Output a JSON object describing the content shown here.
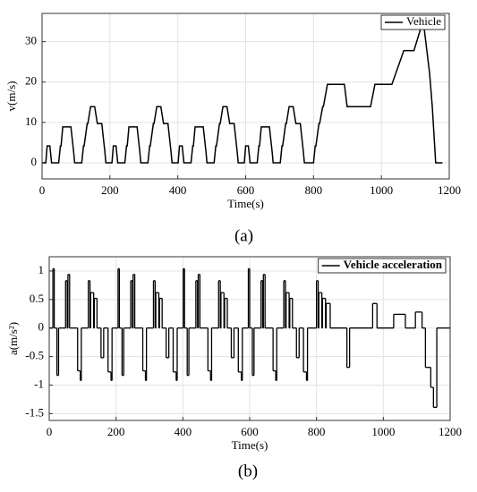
{
  "chart_data": [
    {
      "type": "line",
      "caption": "(a)",
      "xlabel": "Time(s)",
      "ylabel": "v(m/s)",
      "xlim": [
        0,
        1200
      ],
      "xticks": [
        0,
        200,
        400,
        600,
        800,
        1000,
        1200
      ],
      "ylim": [
        -4,
        37
      ],
      "yticks": [
        0,
        10,
        20,
        30
      ],
      "grid": true,
      "legend": "upper right",
      "x": [
        0,
        11,
        15,
        23,
        28,
        49,
        54,
        56,
        61,
        85,
        93,
        96,
        117,
        122,
        124,
        133,
        135,
        143,
        155,
        163,
        176,
        185,
        188,
        195,
        206,
        210,
        218,
        223,
        244,
        249,
        251,
        256,
        280,
        288,
        291,
        312,
        317,
        319,
        328,
        330,
        338,
        350,
        358,
        371,
        380,
        383,
        390,
        401,
        405,
        413,
        418,
        439,
        444,
        446,
        451,
        475,
        483,
        486,
        507,
        512,
        514,
        523,
        525,
        533,
        545,
        553,
        566,
        575,
        578,
        585,
        596,
        600,
        608,
        613,
        634,
        639,
        641,
        646,
        670,
        678,
        681,
        702,
        707,
        709,
        718,
        720,
        728,
        740,
        748,
        761,
        770,
        773,
        800,
        805,
        807,
        816,
        818,
        827,
        829,
        841,
        891,
        899,
        968,
        981,
        1031,
        1066,
        1096,
        1116,
        1126,
        1142,
        1150,
        1160,
        1180
      ],
      "series": [
        {
          "name": "Vehicle",
          "color": "#000000",
          "values": [
            0,
            0,
            4.17,
            4.17,
            0,
            0,
            4.17,
            4.17,
            8.89,
            8.89,
            2.78,
            0,
            0,
            4.17,
            4.17,
            9.72,
            9.72,
            13.89,
            13.89,
            9.72,
            9.72,
            2.78,
            0,
            0,
            0,
            4.17,
            4.17,
            0,
            0,
            4.17,
            4.17,
            8.89,
            8.89,
            2.78,
            0,
            0,
            4.17,
            4.17,
            9.72,
            9.72,
            13.89,
            13.89,
            9.72,
            9.72,
            2.78,
            0,
            0,
            0,
            4.17,
            4.17,
            0,
            0,
            4.17,
            4.17,
            8.89,
            8.89,
            2.78,
            0,
            0,
            4.17,
            4.17,
            9.72,
            9.72,
            13.89,
            13.89,
            9.72,
            9.72,
            2.78,
            0,
            0,
            0,
            4.17,
            4.17,
            0,
            0,
            4.17,
            4.17,
            8.89,
            8.89,
            2.78,
            0,
            0,
            4.17,
            4.17,
            9.72,
            9.72,
            13.89,
            13.89,
            9.72,
            9.72,
            2.78,
            0,
            0,
            4.17,
            4.17,
            9.72,
            9.72,
            13.89,
            13.89,
            19.44,
            19.44,
            13.89,
            13.89,
            19.44,
            19.44,
            27.78,
            27.78,
            33.33,
            33.33,
            22.22,
            13.89,
            0,
            0
          ]
        }
      ]
    },
    {
      "type": "step",
      "caption": "(b)",
      "xlabel": "Time(s)",
      "ylabel": "a(m/s²)",
      "xlim": [
        0,
        1200
      ],
      "xticks": [
        0,
        200,
        400,
        600,
        800,
        1000,
        1200
      ],
      "ylim": [
        -1.62,
        1.25
      ],
      "yticks": [
        -1.5,
        -1,
        -0.5,
        0,
        0.5,
        1
      ],
      "grid": true,
      "legend": "upper right",
      "x": [
        0,
        11,
        15,
        23,
        28,
        49,
        54,
        56,
        61,
        85,
        93,
        96,
        117,
        122,
        124,
        133,
        135,
        143,
        155,
        163,
        176,
        185,
        188,
        206,
        210,
        218,
        223,
        244,
        249,
        251,
        256,
        280,
        288,
        291,
        312,
        317,
        319,
        328,
        330,
        338,
        350,
        358,
        371,
        380,
        383,
        401,
        405,
        413,
        418,
        439,
        444,
        446,
        451,
        475,
        483,
        486,
        507,
        512,
        514,
        523,
        525,
        533,
        545,
        553,
        566,
        575,
        578,
        596,
        600,
        608,
        613,
        634,
        639,
        641,
        646,
        670,
        678,
        681,
        702,
        707,
        709,
        718,
        720,
        728,
        740,
        748,
        761,
        770,
        773,
        800,
        805,
        807,
        816,
        818,
        827,
        829,
        841,
        891,
        899,
        968,
        981,
        1031,
        1066,
        1096,
        1116,
        1126,
        1142,
        1150,
        1160,
        1180
      ],
      "series": [
        {
          "name": "Vehicle acceleration",
          "color": "#000000",
          "values": [
            0,
            1.04,
            0,
            -0.83,
            0,
            0.83,
            0,
            0.94,
            0,
            -0.75,
            -0.92,
            0,
            0.83,
            0,
            0.62,
            0,
            0.52,
            0,
            -0.52,
            0,
            -0.77,
            -0.92,
            0,
            1.04,
            0,
            -0.83,
            0,
            0.83,
            0,
            0.94,
            0,
            -0.75,
            -0.92,
            0,
            0.83,
            0,
            0.62,
            0,
            0.52,
            0,
            -0.52,
            0,
            -0.77,
            -0.92,
            0,
            1.04,
            0,
            -0.83,
            0,
            0.83,
            0,
            0.94,
            0,
            -0.75,
            -0.92,
            0,
            0.83,
            0,
            0.62,
            0,
            0.52,
            0,
            -0.52,
            0,
            -0.77,
            -0.92,
            0,
            1.04,
            0,
            -0.83,
            0,
            0.83,
            0,
            0.94,
            0,
            -0.75,
            -0.92,
            0,
            0.83,
            0,
            0.62,
            0,
            0.52,
            0,
            -0.52,
            0,
            -0.77,
            -0.92,
            0,
            0.83,
            0,
            0.62,
            0,
            0.52,
            0,
            0.43,
            0,
            -0.69,
            0,
            0.43,
            0,
            0.24,
            0,
            0.28,
            0,
            -0.69,
            -1.04,
            -1.39,
            0,
            0
          ]
        }
      ]
    }
  ]
}
